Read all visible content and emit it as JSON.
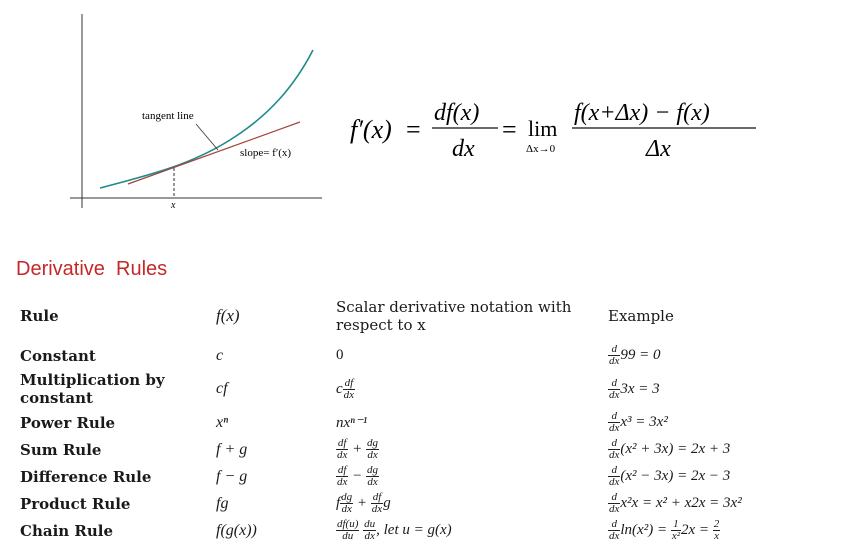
{
  "figure": {
    "tangent_label": "tangent line",
    "slope_label": "slope= f′(x)",
    "x_label": "x"
  },
  "formula": {
    "lhs": "f′(x)",
    "eq": "=",
    "frac_num": "df(x)",
    "frac_den": "dx",
    "lim": "lim",
    "lim_sub": "Δx→0",
    "rhs_num": "f(x+Δx) − f(x)",
    "rhs_den": "Δx"
  },
  "section_title": "Derivative  Rules",
  "table": {
    "headers": {
      "rule": "Rule",
      "fx": "f(x)",
      "deriv_line1": "Scalar derivative notation with",
      "deriv_line2": "respect to x",
      "example": "Example"
    },
    "rows": [
      {
        "rule": "Constant",
        "fx": "c",
        "deriv": "0",
        "example": "99 = 0"
      },
      {
        "rule_line1": "Multiplication by",
        "rule_line2": "constant",
        "fx": "cf",
        "deriv": "c",
        "example": "3x = 3"
      },
      {
        "rule": "Power Rule",
        "fx": "xⁿ",
        "deriv": "nxⁿ⁻¹",
        "example": "x³ = 3x²"
      },
      {
        "rule": "Sum Rule",
        "fx": "f + g",
        "deriv": "+",
        "example": "(x² + 3x) = 2x + 3"
      },
      {
        "rule": "Difference Rule",
        "fx": "f − g",
        "deriv": "−",
        "example": "(x² − 3x) = 2x − 3"
      },
      {
        "rule": "Product Rule",
        "fx": "fg",
        "deriv_a": "f",
        "deriv_b": "+",
        "deriv_c": "g",
        "example": "x²x = x² + x2x = 3x²"
      },
      {
        "rule": "Chain Rule",
        "fx": "f(g(x))",
        "deriv": ", let u = g(x)",
        "example": "ln(x²) = ",
        "example_mid": "2x = "
      }
    ]
  }
}
